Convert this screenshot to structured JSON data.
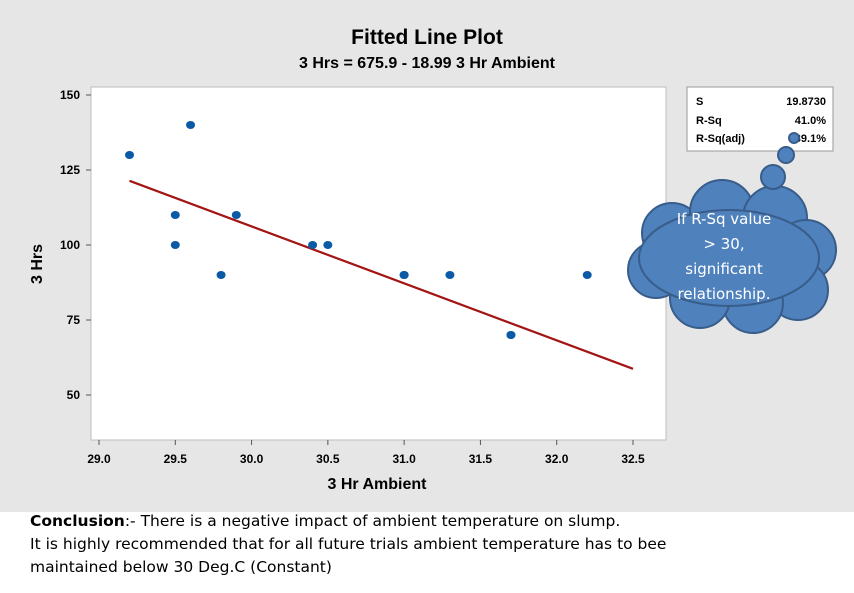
{
  "chart_data": {
    "type": "scatter",
    "title": "Fitted Line Plot",
    "subtitle": "3 Hrs = 675.9 - 18.99 3 Hr Ambient",
    "xlabel": "3 Hr Ambient",
    "ylabel": "3 Hrs",
    "xlim": [
      29.0,
      32.5
    ],
    "ylim": [
      50,
      150
    ],
    "x_ticks": [
      "29.0",
      "29.5",
      "30.0",
      "30.5",
      "31.0",
      "31.5",
      "32.0",
      "32.5"
    ],
    "y_ticks": [
      "150",
      "125",
      "100",
      "75",
      "50"
    ],
    "points": [
      {
        "x": 29.2,
        "y": 130
      },
      {
        "x": 29.5,
        "y": 110
      },
      {
        "x": 29.5,
        "y": 100
      },
      {
        "x": 29.6,
        "y": 140
      },
      {
        "x": 29.8,
        "y": 90
      },
      {
        "x": 29.9,
        "y": 110
      },
      {
        "x": 30.4,
        "y": 100
      },
      {
        "x": 30.5,
        "y": 100
      },
      {
        "x": 31.0,
        "y": 90
      },
      {
        "x": 31.0,
        "y": 90
      },
      {
        "x": 31.3,
        "y": 90
      },
      {
        "x": 31.7,
        "y": 70
      },
      {
        "x": 31.7,
        "y": 70
      },
      {
        "x": 32.2,
        "y": 90
      }
    ],
    "fit": {
      "intercept": 675.9,
      "slope": -18.99,
      "x_range": [
        29.2,
        32.5
      ]
    },
    "grid": false,
    "colors": {
      "points": "#0b5aa6",
      "fit_line": "#a31515",
      "plot_bg": "#ffffff",
      "panel_bg": "#e6e6e6"
    }
  },
  "stats_box": {
    "rows": [
      {
        "label": "S",
        "value": "19.8730"
      },
      {
        "label": "R-Sq",
        "value": "41.0%"
      },
      {
        "label": "R-Sq(adj)",
        "value": "39.1%"
      }
    ]
  },
  "callout": {
    "lines": [
      "If R-Sq value",
      "> 30,",
      "significant",
      "relationship."
    ],
    "fill": "#4f81bd",
    "stroke": "#385d8a"
  },
  "conclusion": {
    "heading": "Conclusion",
    "heading_suffix": ":- There is a negative impact of ambient temperature on slump.",
    "line2": "It is highly recommended that for all future trials ambient temperature has to bee",
    "line3": "maintained below 30 Deg.C (Constant)"
  }
}
